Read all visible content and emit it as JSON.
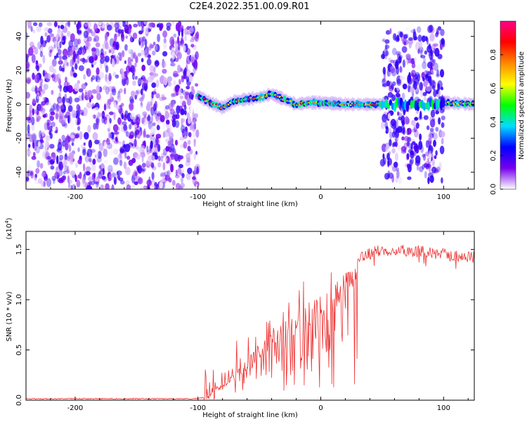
{
  "title": "C2E4.2022.351.00.09.R01",
  "chart_data": [
    {
      "type": "heatmap",
      "xlabel": "Height of straight line (km)",
      "ylabel": "Frequency (Hz)",
      "xlim": [
        -240,
        125
      ],
      "ylim": [
        -50,
        49
      ],
      "xticks": [
        -200,
        -100,
        0,
        100
      ],
      "yticks": [
        -40,
        -20,
        0,
        20,
        40
      ],
      "colorbar": {
        "label": "Normalized spectral amplitude",
        "range": [
          0,
          1
        ],
        "ticks": [
          0.0,
          0.2,
          0.4,
          0.6,
          0.8
        ],
        "tick_labels": [
          "0.0",
          "0.2",
          "0.4",
          "0.6",
          "0.8"
        ],
        "colors": [
          "#ffffff",
          "#7700ee",
          "#0000ff",
          "#00ddff",
          "#00ff00",
          "#ffff00",
          "#ff8800",
          "#ff0000",
          "#ff0088"
        ]
      },
      "regions": [
        {
          "x": [
            -240,
            -100
          ],
          "y": [
            -50,
            49
          ],
          "pattern": "noise",
          "peak": 0.15
        },
        {
          "x": [
            -100,
            50
          ],
          "y": [
            -8,
            8
          ],
          "pattern": "band",
          "peak": 0.9
        },
        {
          "x": [
            50,
            100
          ],
          "y": [
            -45,
            45
          ],
          "pattern": "noise",
          "peak": 0.3
        },
        {
          "x": [
            100,
            125
          ],
          "y": [
            -3,
            3
          ],
          "pattern": "band",
          "peak": 0.75
        }
      ],
      "band_center": [
        [
          -100,
          5
        ],
        [
          -90,
          1
        ],
        [
          -80,
          -2
        ],
        [
          -70,
          2
        ],
        [
          -60,
          3
        ],
        [
          -50,
          4
        ],
        [
          -40,
          6
        ],
        [
          -30,
          3
        ],
        [
          -20,
          0
        ],
        [
          -10,
          1
        ],
        [
          0,
          1
        ],
        [
          20,
          0
        ],
        [
          50,
          0
        ],
        [
          100,
          1
        ],
        [
          125,
          0
        ]
      ]
    },
    {
      "type": "line",
      "xlabel": "Height of straight line (km)",
      "ylabel": "SNR (10 * v/v)",
      "scale_label": "(x10",
      "scale_exp": "4",
      "scale_close": ")",
      "xlim": [
        -240,
        125
      ],
      "ylim": [
        0,
        1.68
      ],
      "xticks": [
        -200,
        -100,
        0,
        100
      ],
      "yticks": [
        0.0,
        0.5,
        1.0,
        1.5
      ],
      "ytick_labels": [
        "0.0",
        "0.5",
        "1.0",
        "1.5"
      ],
      "color": "#ee3333",
      "envelope": [
        [
          -240,
          0.01
        ],
        [
          -100,
          0.01
        ],
        [
          -92,
          0.03
        ],
        [
          -85,
          0.12
        ],
        [
          -75,
          0.22
        ],
        [
          -65,
          0.35
        ],
        [
          -55,
          0.48
        ],
        [
          -45,
          0.62
        ],
        [
          -35,
          0.72
        ],
        [
          -25,
          0.85
        ],
        [
          -15,
          0.95
        ],
        [
          -5,
          1.02
        ],
        [
          5,
          1.08
        ],
        [
          15,
          1.22
        ],
        [
          25,
          1.35
        ],
        [
          35,
          1.44
        ],
        [
          45,
          1.48
        ],
        [
          60,
          1.5
        ],
        [
          80,
          1.48
        ],
        [
          100,
          1.45
        ],
        [
          125,
          1.42
        ]
      ]
    }
  ]
}
